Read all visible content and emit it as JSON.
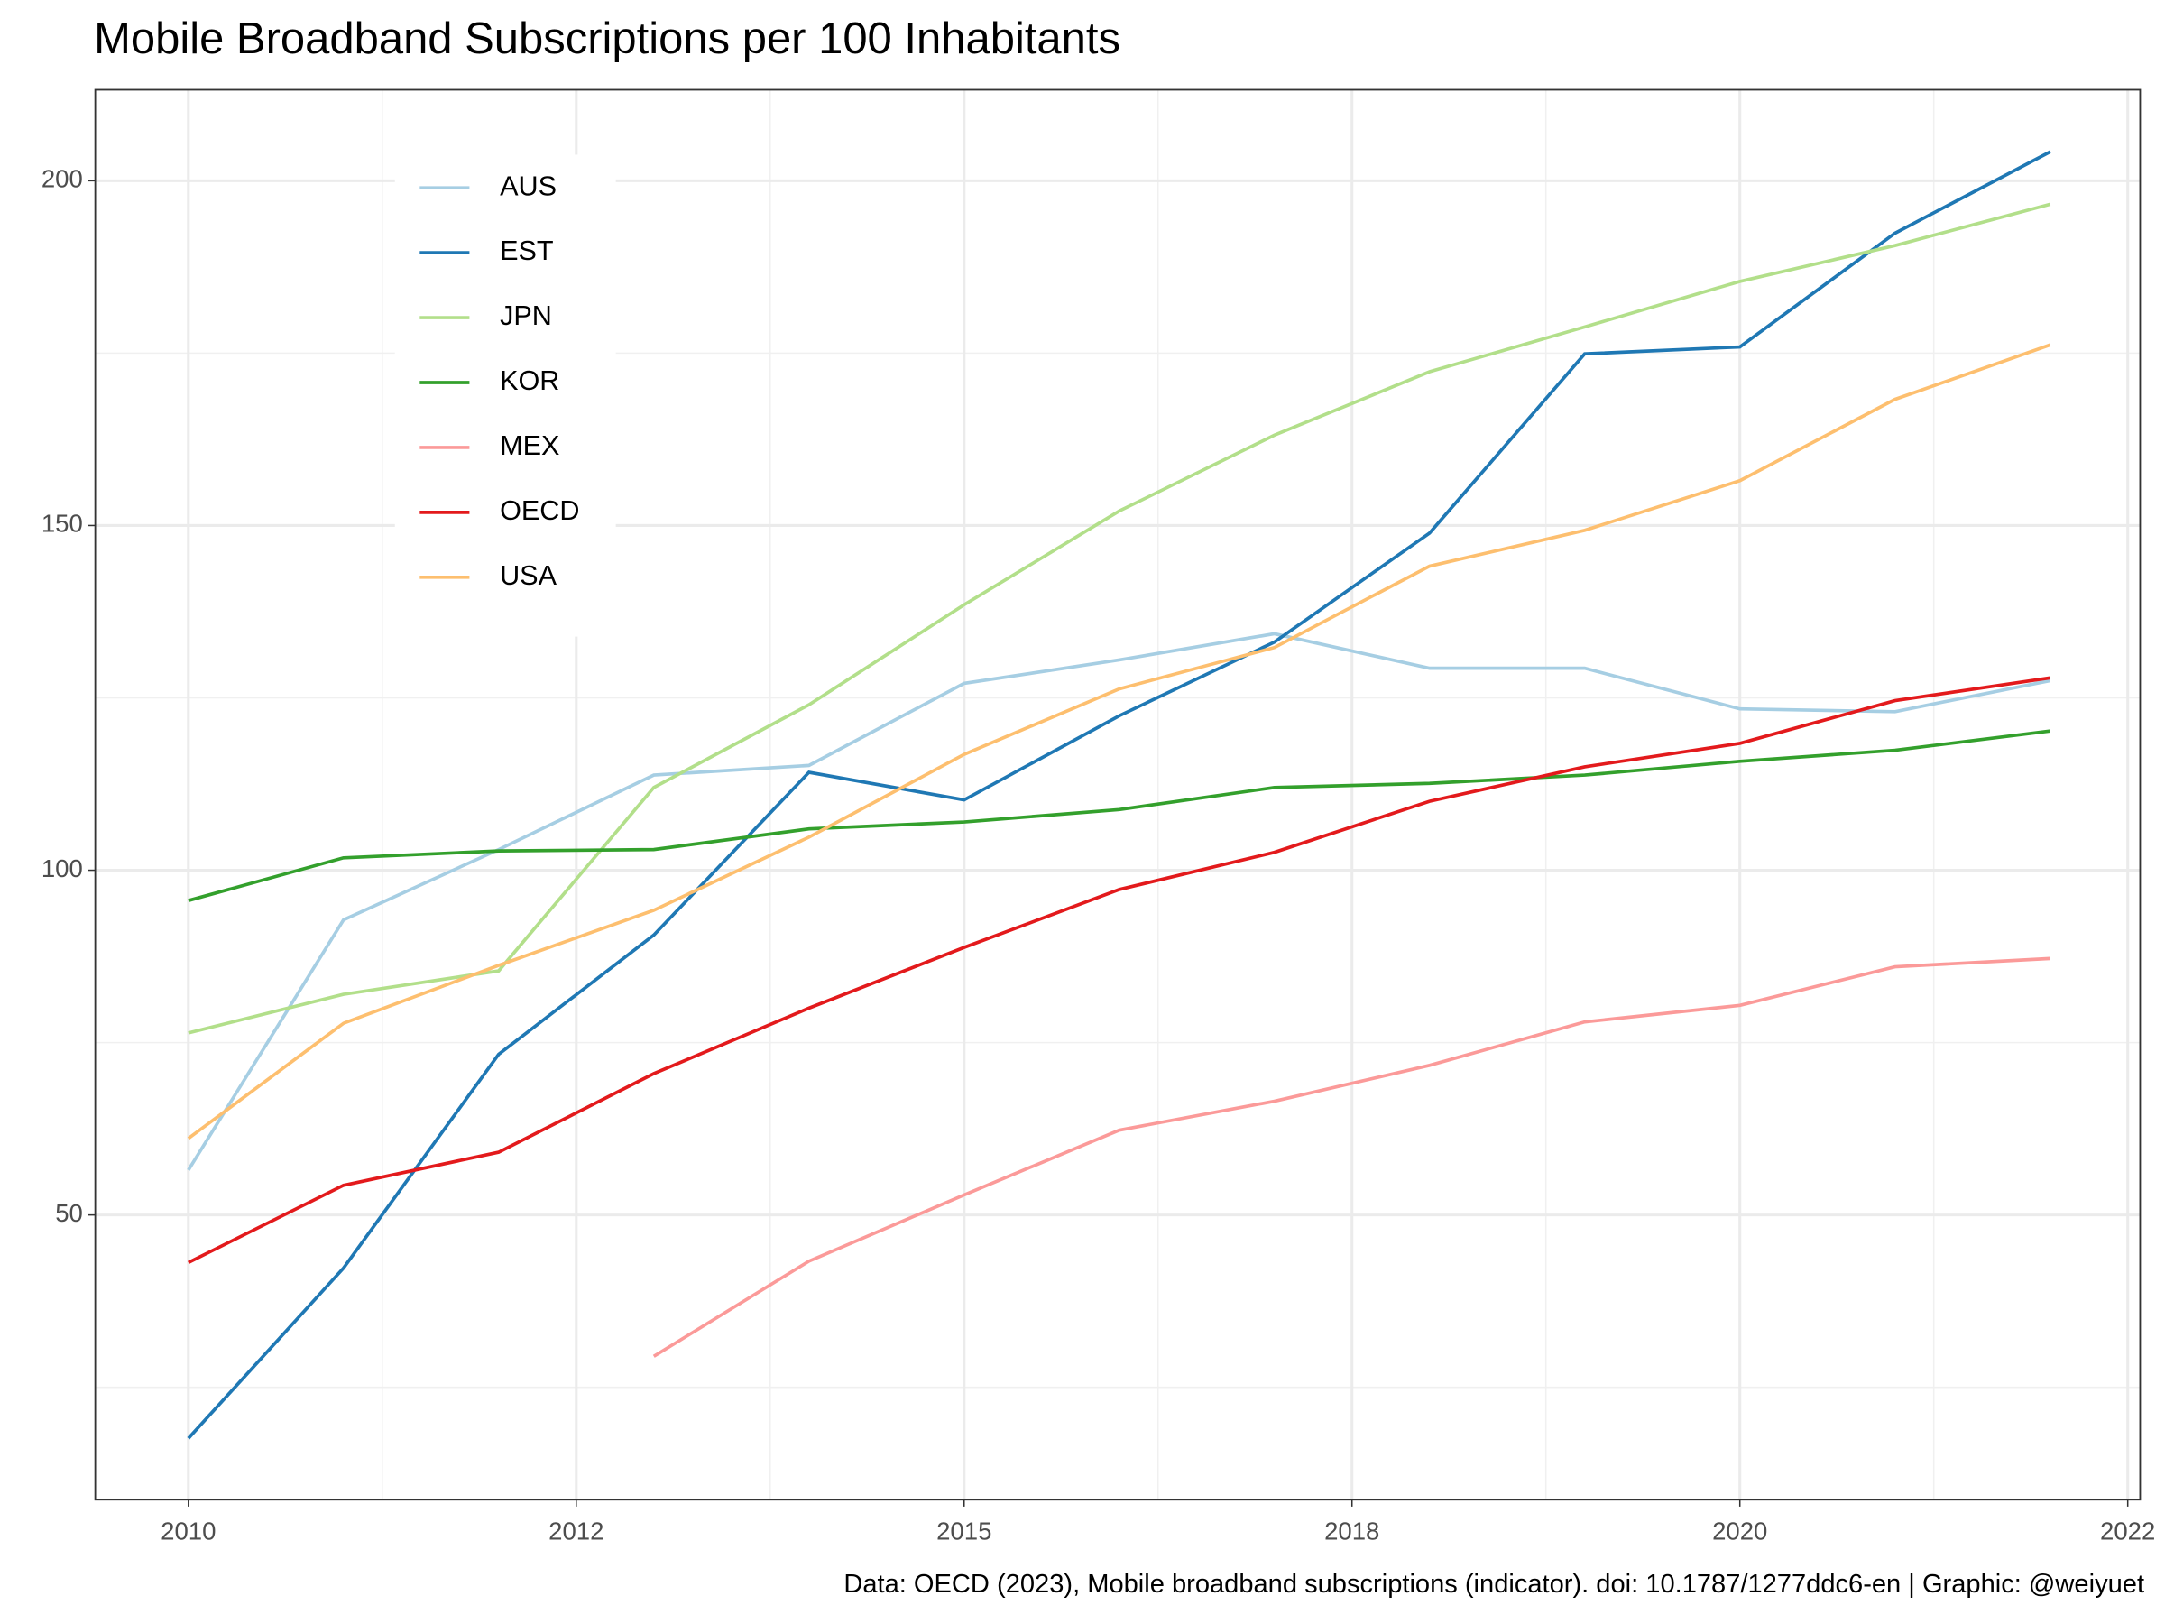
{
  "chart_data": {
    "type": "line",
    "title": "Mobile Broadband Subscriptions per 100 Inhabitants",
    "caption": "Data: OECD (2023), Mobile broadband subscriptions (indicator). doi: 10.1787/1277ddc6-en | Graphic: @weiyuet",
    "x": [
      2010,
      2011,
      2012,
      2013,
      2014,
      2015,
      2016,
      2017,
      2018,
      2019,
      2020,
      2021,
      2022
    ],
    "xlim": [
      2009.4,
      2022.58
    ],
    "xticks": [
      2010,
      {
        "value": 2012.5,
        "label": "2012"
      },
      2015,
      {
        "value": 2017.5,
        "label": "2018"
      },
      2020,
      {
        "value": 2022.5,
        "label": "2022"
      }
    ],
    "ylim": [
      8.7,
      213.2
    ],
    "yticks": [
      50,
      100,
      150,
      200
    ],
    "grid": true,
    "legend_position": "top-left",
    "series": [
      {
        "name": "AUS",
        "color": "#a6cee3",
        "values": [
          56.5,
          92.8,
          103.0,
          113.8,
          115.2,
          127.1,
          130.5,
          134.3,
          129.3,
          129.3,
          123.4,
          123.0,
          127.5
        ]
      },
      {
        "name": "EST",
        "color": "#1f78b4",
        "values": [
          17.6,
          42.3,
          73.3,
          90.6,
          114.2,
          110.2,
          122.4,
          133.1,
          148.9,
          174.9,
          175.9,
          192.4,
          204.2
        ]
      },
      {
        "name": "JPN",
        "color": "#b2df8a",
        "values": [
          76.4,
          82.0,
          85.4,
          112.0,
          124.0,
          138.5,
          152.1,
          163.1,
          172.3,
          178.8,
          185.4,
          190.6,
          196.6
        ]
      },
      {
        "name": "KOR",
        "color": "#33a02c",
        "values": [
          95.6,
          101.8,
          102.8,
          103.0,
          106.0,
          107.0,
          108.8,
          112.0,
          112.6,
          113.8,
          115.8,
          117.4,
          120.2
        ]
      },
      {
        "name": "MEX",
        "color": "#fb9a99",
        "values": [
          null,
          null,
          null,
          29.5,
          43.3,
          52.9,
          62.3,
          66.5,
          71.7,
          78.0,
          80.4,
          86.0,
          87.2
        ]
      },
      {
        "name": "OECD",
        "color": "#e31a1c",
        "values": [
          43.1,
          54.3,
          59.1,
          70.5,
          80.0,
          88.8,
          97.2,
          102.6,
          110.0,
          115.0,
          118.4,
          124.6,
          127.9
        ]
      },
      {
        "name": "USA",
        "color": "#fdbf6f",
        "values": [
          61.1,
          77.8,
          86.2,
          94.2,
          104.8,
          116.8,
          126.3,
          132.3,
          144.1,
          149.3,
          156.5,
          168.3,
          176.2
        ]
      }
    ]
  }
}
